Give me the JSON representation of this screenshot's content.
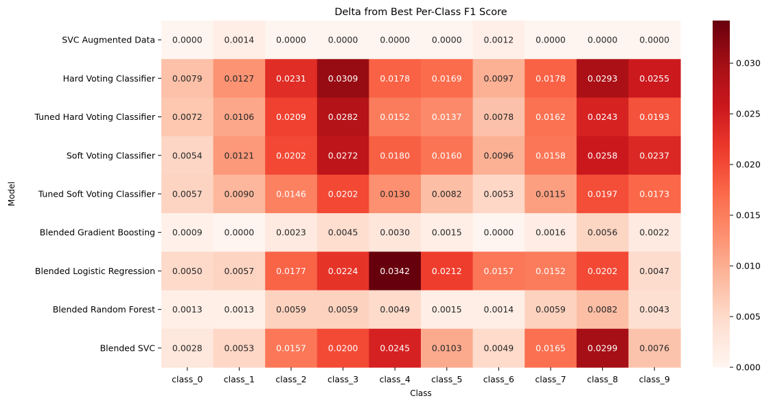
{
  "chart_data": {
    "type": "heatmap",
    "title": "Delta from Best Per-Class F1 Score",
    "xlabel": "Class",
    "ylabel": "Model",
    "colormap": "Reds",
    "vmin": 0,
    "vmax": 0.0342,
    "colorbar_ticks": [
      "0.000",
      "0.005",
      "0.010",
      "0.015",
      "0.020",
      "0.025",
      "0.030"
    ],
    "columns": [
      "class_0",
      "class_1",
      "class_2",
      "class_3",
      "class_4",
      "class_5",
      "class_6",
      "class_7",
      "class_8",
      "class_9"
    ],
    "rows": [
      "SVC Augmented Data",
      "Hard Voting Classifier",
      "Tuned Hard Voting Classifier",
      "Soft Voting Classifier",
      "Tuned Soft Voting Classifier",
      "Blended Gradient Boosting",
      "Blended Logistic Regression",
      "Blended Random Forest",
      "Blended SVC"
    ],
    "values": [
      [
        0.0,
        0.0014,
        0.0,
        0.0,
        0.0,
        0.0,
        0.0012,
        0.0,
        0.0,
        0.0
      ],
      [
        0.0079,
        0.0127,
        0.0231,
        0.0309,
        0.0178,
        0.0169,
        0.0097,
        0.0178,
        0.0293,
        0.0255
      ],
      [
        0.0072,
        0.0106,
        0.0209,
        0.0282,
        0.0152,
        0.0137,
        0.0078,
        0.0162,
        0.0243,
        0.0193
      ],
      [
        0.0054,
        0.0121,
        0.0202,
        0.0272,
        0.018,
        0.016,
        0.0096,
        0.0158,
        0.0258,
        0.0237
      ],
      [
        0.0057,
        0.009,
        0.0146,
        0.0202,
        0.013,
        0.0082,
        0.0053,
        0.0115,
        0.0197,
        0.0173
      ],
      [
        0.0009,
        0.0,
        0.0023,
        0.0045,
        0.003,
        0.0015,
        0.0,
        0.0016,
        0.0056,
        0.0022
      ],
      [
        0.005,
        0.0057,
        0.0177,
        0.0224,
        0.0342,
        0.0212,
        0.0157,
        0.0152,
        0.0202,
        0.0047
      ],
      [
        0.0013,
        0.0013,
        0.0059,
        0.0059,
        0.0049,
        0.0015,
        0.0014,
        0.0059,
        0.0082,
        0.0043
      ],
      [
        0.0028,
        0.0053,
        0.0157,
        0.02,
        0.0245,
        0.0103,
        0.0049,
        0.0165,
        0.0299,
        0.0076
      ]
    ],
    "annotation_format": "0.0000"
  }
}
